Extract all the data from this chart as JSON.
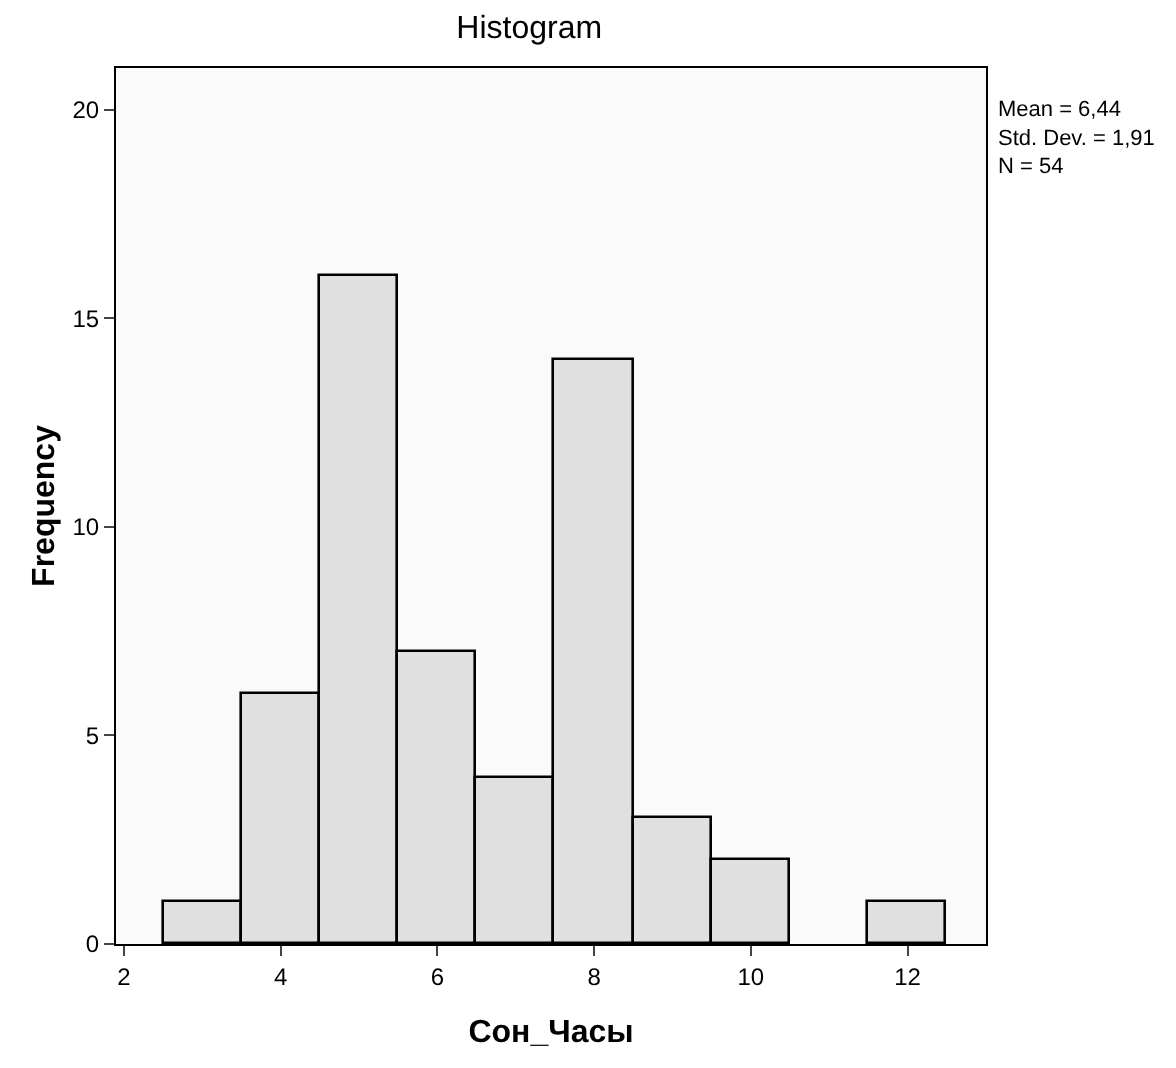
{
  "chart_data": {
    "type": "histogram",
    "title": "Histogram",
    "xlabel": "Сон_Часы",
    "ylabel": "Frequency",
    "bins": [
      2.5,
      3.5,
      4.5,
      5.5,
      6.5,
      7.5,
      8.5,
      9.5,
      10.5,
      11.5,
      12.5
    ],
    "values": [
      1,
      6,
      16,
      7,
      4,
      14,
      3,
      2,
      0,
      1
    ],
    "color": "#e0e0e0",
    "xlim": [
      1.9,
      13
    ],
    "xticks": [
      2,
      4,
      6,
      8,
      10,
      12
    ],
    "ylim": [
      0,
      21
    ],
    "yticks": [
      0,
      5,
      10,
      15,
      20
    ],
    "annotations": [
      "Mean = 6,44",
      "Std. Dev. = 1,91",
      "N = 54"
    ]
  }
}
